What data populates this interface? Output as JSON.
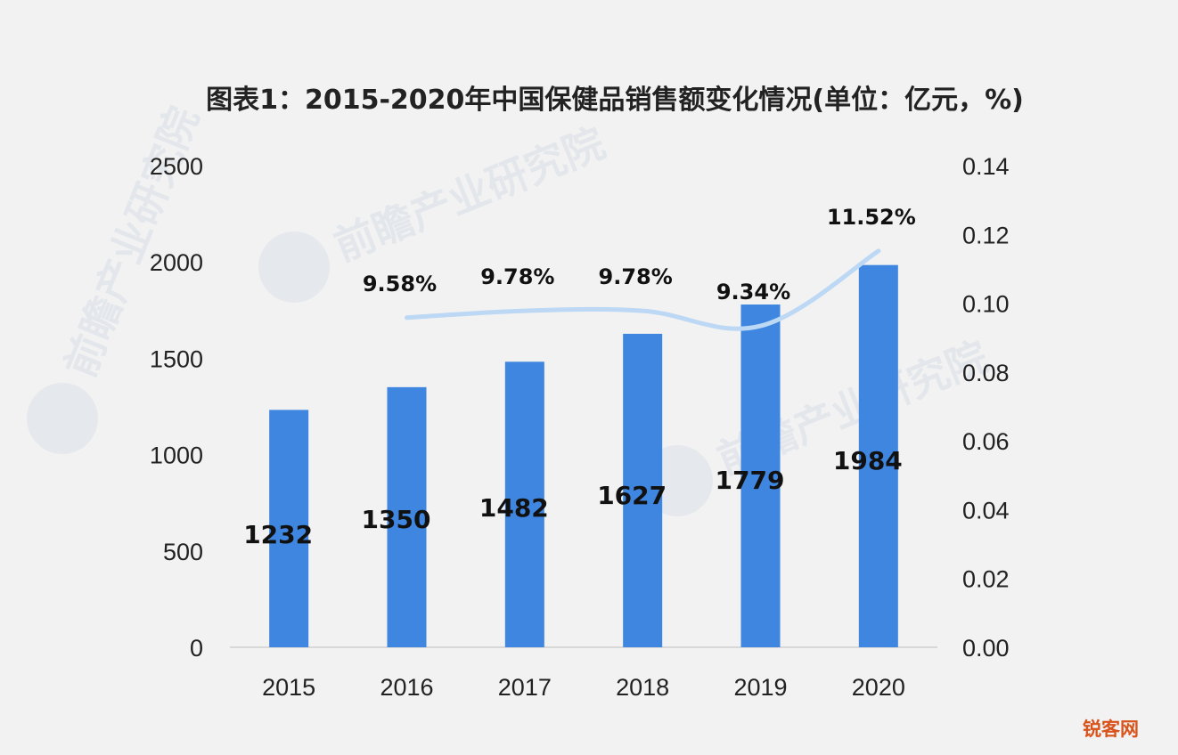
{
  "chart_data": {
    "type": "bar",
    "title": "图表1：2015-2020年中国保健品销售额变化情况(单位：亿元，%)",
    "categories": [
      "2015",
      "2016",
      "2017",
      "2018",
      "2019",
      "2020"
    ],
    "series": [
      {
        "type": "bar",
        "values": [
          1232,
          1350,
          1482,
          1627,
          1779,
          1984
        ],
        "color": "#3f86e0",
        "axis": "left"
      },
      {
        "type": "line",
        "values": [
          null,
          0.0958,
          0.0978,
          0.0978,
          0.0934,
          0.1152
        ],
        "labels": [
          "",
          "9.58%",
          "9.78%",
          "9.78%",
          "9.34%",
          "11.52%"
        ],
        "color": "#bcd8f4",
        "axis": "right"
      }
    ],
    "y_left": {
      "lim": [
        0,
        2500
      ],
      "ticks": [
        "0",
        "500",
        "1000",
        "1500",
        "2000",
        "2500"
      ]
    },
    "y_right": {
      "lim": [
        0,
        0.14
      ],
      "ticks": [
        "0.00",
        "0.02",
        "0.04",
        "0.06",
        "0.08",
        "0.10",
        "0.12",
        "0.14"
      ]
    },
    "grid": false,
    "legend": "none"
  },
  "watermark_text": "前瞻产业研究院",
  "corner_mark": "锐客网"
}
